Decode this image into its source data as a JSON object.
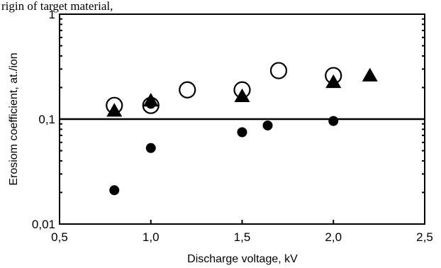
{
  "top_caption": "rigin of target material,",
  "chart_data": {
    "type": "scatter",
    "title": "",
    "xlabel": "Discharge voltage, kV",
    "ylabel": "Erosiom coefficient, at./ion",
    "xlim": [
      0.5,
      2.5
    ],
    "ylim": [
      0.01,
      1
    ],
    "yscale": "log",
    "x_ticks": [
      0.5,
      1.0,
      1.5,
      2.0,
      2.5
    ],
    "x_tick_labels": [
      "0,5",
      "1,0",
      "1,5",
      "2,0",
      "2,5"
    ],
    "y_ticks": [
      0.01,
      0.1,
      1
    ],
    "y_tick_labels": [
      "0,01",
      "0,1",
      "1"
    ],
    "reference_line": {
      "y": 0.1
    },
    "grid": false,
    "series": [
      {
        "marker": "open-circle",
        "points": [
          {
            "x": 0.8,
            "y": 0.135
          },
          {
            "x": 1.0,
            "y": 0.135
          },
          {
            "x": 1.2,
            "y": 0.19
          },
          {
            "x": 1.5,
            "y": 0.19
          },
          {
            "x": 1.7,
            "y": 0.29
          },
          {
            "x": 2.0,
            "y": 0.26
          }
        ]
      },
      {
        "marker": "filled-triangle",
        "points": [
          {
            "x": 0.8,
            "y": 0.12
          },
          {
            "x": 1.0,
            "y": 0.15
          },
          {
            "x": 1.5,
            "y": 0.165
          },
          {
            "x": 2.0,
            "y": 0.225
          },
          {
            "x": 2.2,
            "y": 0.26
          }
        ]
      },
      {
        "marker": "filled-circle",
        "points": [
          {
            "x": 0.8,
            "y": 0.021
          },
          {
            "x": 1.0,
            "y": 0.053
          },
          {
            "x": 1.0,
            "y": 0.14
          },
          {
            "x": 1.5,
            "y": 0.075
          },
          {
            "x": 1.64,
            "y": 0.087
          },
          {
            "x": 2.0,
            "y": 0.096
          }
        ]
      }
    ]
  }
}
